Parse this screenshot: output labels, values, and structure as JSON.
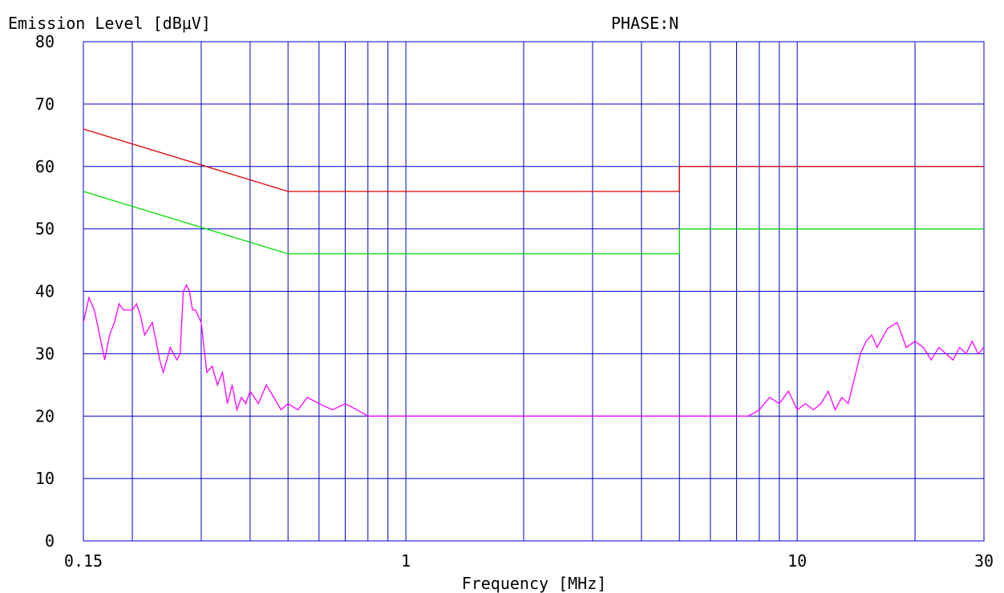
{
  "chart_data": {
    "type": "line",
    "title": "PHASE:N",
    "ylabel": "Emission Level [dBμV]",
    "xlabel": "Frequency [MHz]",
    "x_scale": "log",
    "xlim": [
      0.15,
      30
    ],
    "ylim": [
      0,
      80
    ],
    "grid": true,
    "x_tick_labels": [
      {
        "value": 0.15,
        "label": "0.15"
      },
      {
        "value": 1,
        "label": "1"
      },
      {
        "value": 10,
        "label": "10"
      },
      {
        "value": 30,
        "label": "30"
      }
    ],
    "y_tick_labels": [
      {
        "value": 0,
        "label": "0"
      },
      {
        "value": 10,
        "label": "10"
      },
      {
        "value": 20,
        "label": "20"
      },
      {
        "value": 30,
        "label": "30"
      },
      {
        "value": 40,
        "label": "40"
      },
      {
        "value": 50,
        "label": "50"
      },
      {
        "value": 60,
        "label": "60"
      },
      {
        "value": 70,
        "label": "70"
      },
      {
        "value": 80,
        "label": "80"
      }
    ],
    "x_gridlines": [
      0.15,
      0.2,
      0.3,
      0.4,
      0.5,
      0.6,
      0.7,
      0.8,
      0.9,
      1,
      2,
      3,
      4,
      5,
      6,
      7,
      8,
      9,
      10,
      20,
      30
    ],
    "y_gridlines": [
      0,
      10,
      20,
      30,
      40,
      50,
      60,
      70,
      80
    ],
    "series": [
      {
        "color": "#e00000",
        "x": [
          0.15,
          0.5,
          0.5,
          5,
          5,
          30
        ],
        "y": [
          66,
          56,
          56,
          56,
          60,
          60
        ]
      },
      {
        "color": "#00e000",
        "x": [
          0.15,
          0.5,
          0.5,
          5,
          5,
          30
        ],
        "y": [
          56,
          46,
          46,
          46,
          50,
          50
        ]
      },
      {
        "color": "#ff00ff",
        "x": [
          0.15,
          0.155,
          0.16,
          0.165,
          0.17,
          0.175,
          0.18,
          0.185,
          0.19,
          0.195,
          0.2,
          0.205,
          0.21,
          0.215,
          0.22,
          0.225,
          0.23,
          0.235,
          0.24,
          0.245,
          0.25,
          0.255,
          0.26,
          0.265,
          0.27,
          0.275,
          0.28,
          0.285,
          0.29,
          0.295,
          0.3,
          0.31,
          0.32,
          0.33,
          0.34,
          0.35,
          0.36,
          0.37,
          0.38,
          0.39,
          0.4,
          0.42,
          0.44,
          0.46,
          0.48,
          0.5,
          0.53,
          0.56,
          0.6,
          0.65,
          0.7,
          0.75,
          0.8,
          0.9,
          1.0,
          1.2,
          1.5,
          2.0,
          2.5,
          3.0,
          3.5,
          4.0,
          4.5,
          5.0,
          5.5,
          6.0,
          6.5,
          7.0,
          7.5,
          8.0,
          8.5,
          9.0,
          9.5,
          10.0,
          10.5,
          11.0,
          11.5,
          12.0,
          12.5,
          13.0,
          13.5,
          14.0,
          14.5,
          15.0,
          15.5,
          16.0,
          17.0,
          18.0,
          19.0,
          20.0,
          21.0,
          22.0,
          23.0,
          24.0,
          25.0,
          26.0,
          27.0,
          28.0,
          29.0,
          30.0
        ],
        "y": [
          35,
          39,
          37,
          33,
          29,
          33,
          35,
          38,
          37,
          37,
          37,
          38,
          36,
          33,
          34,
          35,
          32,
          29,
          27,
          29,
          31,
          30,
          29,
          30,
          40,
          41,
          40,
          37,
          37,
          36,
          35,
          27,
          28,
          25,
          27,
          22,
          25,
          21,
          23,
          22,
          24,
          22,
          25,
          23,
          21,
          22,
          21,
          23,
          22,
          21,
          22,
          21,
          20,
          20,
          20,
          20,
          20,
          20,
          20,
          20,
          20,
          20,
          20,
          20,
          20,
          20,
          20,
          20,
          20,
          21,
          23,
          22,
          24,
          21,
          22,
          21,
          22,
          24,
          21,
          23,
          22,
          26,
          30,
          32,
          33,
          31,
          34,
          35,
          31,
          32,
          31,
          29,
          31,
          30,
          29,
          31,
          30,
          32,
          30,
          31
        ]
      }
    ]
  }
}
